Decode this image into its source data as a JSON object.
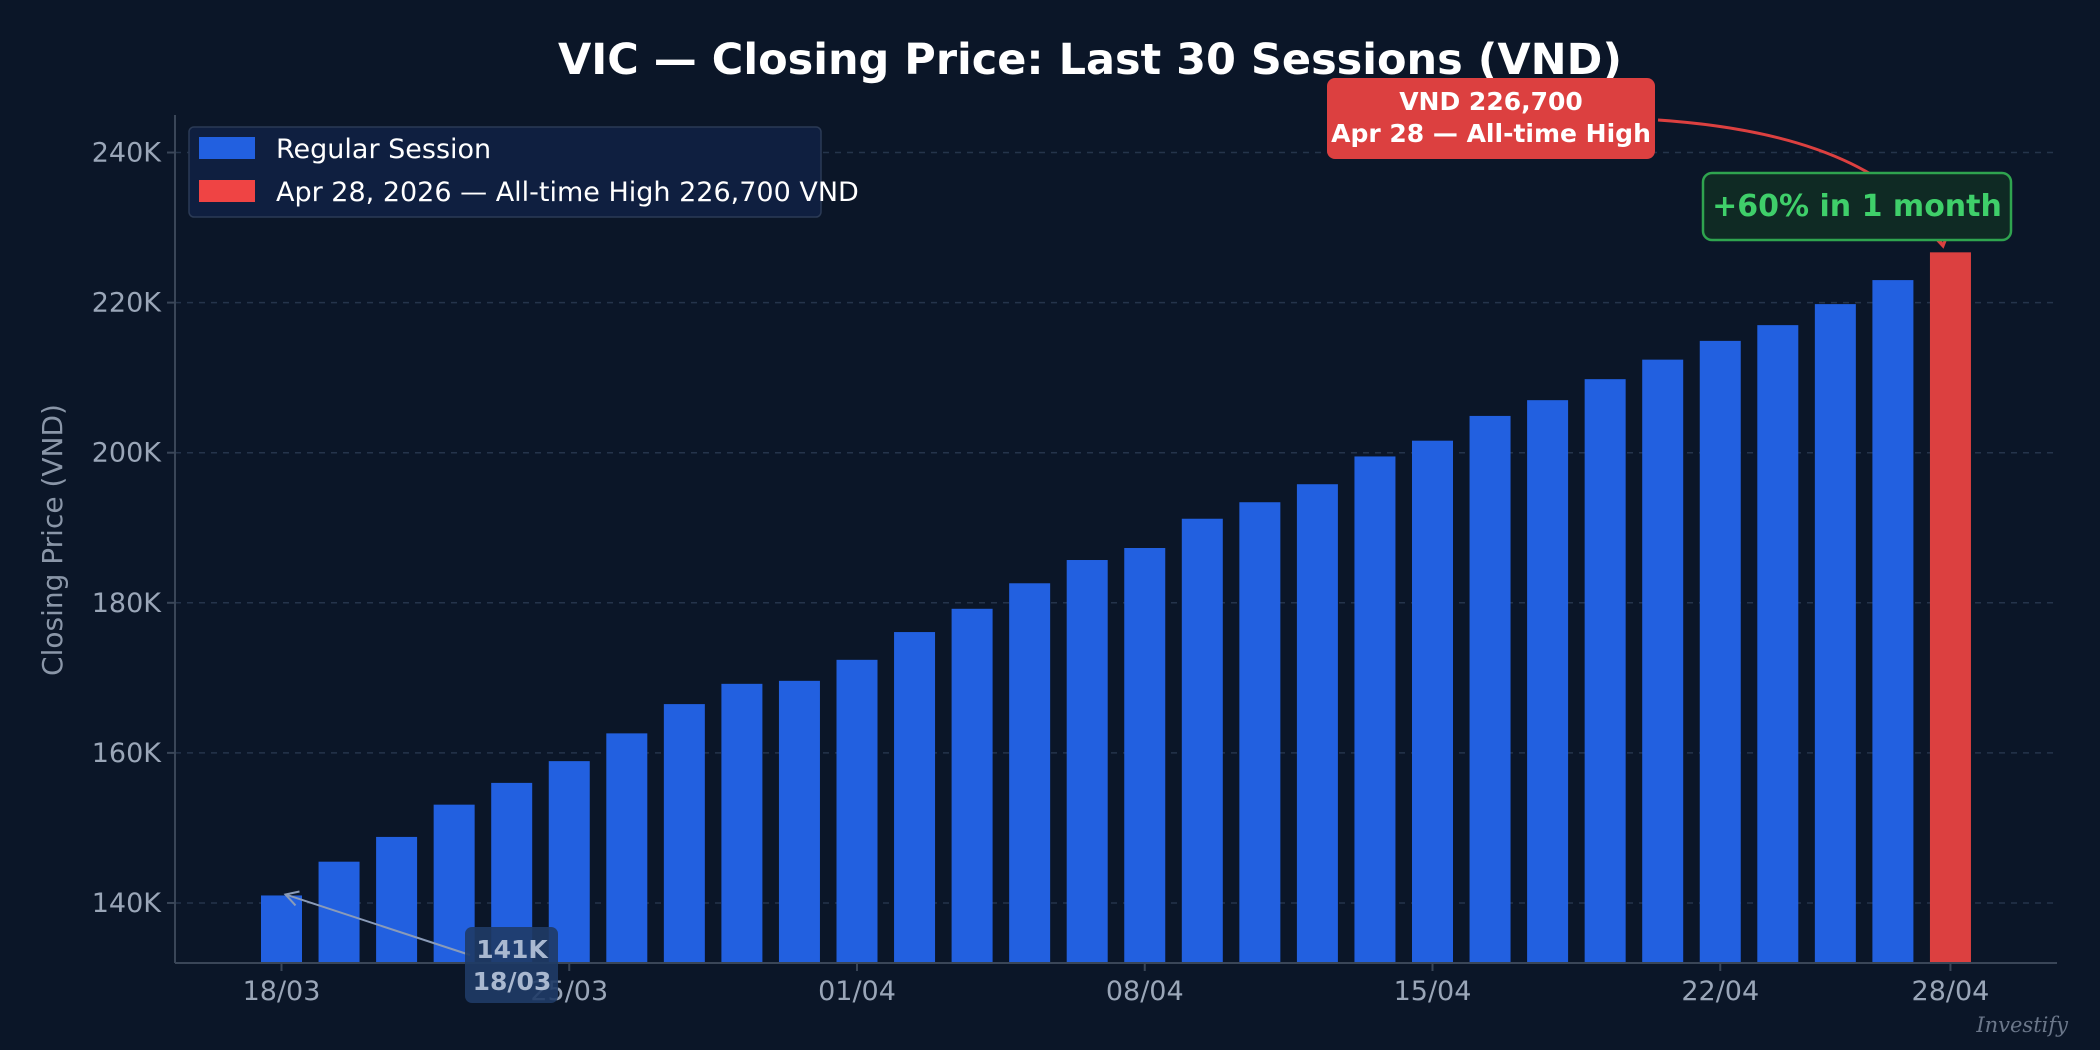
{
  "colors": {
    "background": "#0b1628",
    "regular": "#2260e0",
    "highlight": "#dc4040",
    "green": "#3fcf6a",
    "grid": "#25344b",
    "axis": "#3a4658"
  },
  "chart_data": {
    "type": "bar",
    "title": "VIC — Closing Price: Last 30 Sessions (VND)",
    "ylabel": "Closing Price (VND)",
    "xlabel": "",
    "ylim": [
      132000,
      245000
    ],
    "yticks": [
      140000,
      160000,
      180000,
      200000,
      220000,
      240000
    ],
    "ytick_labels": [
      "140K",
      "160K",
      "180K",
      "200K",
      "220K",
      "240K"
    ],
    "xtick_labels": [
      {
        "index": 0,
        "label": "18/03"
      },
      {
        "index": 5,
        "label": "25/03"
      },
      {
        "index": 10,
        "label": "01/04"
      },
      {
        "index": 15,
        "label": "08/04"
      },
      {
        "index": 20,
        "label": "15/04"
      },
      {
        "index": 25,
        "label": "22/04"
      },
      {
        "index": 29,
        "label": "28/04"
      }
    ],
    "grid": true,
    "legend_position": "top-left",
    "series": [
      {
        "name": "Regular Session",
        "values": [
          141000,
          145500,
          148800,
          153100,
          156000,
          158900,
          162600,
          166500,
          169200,
          169600,
          172400,
          176100,
          179200,
          182600,
          185700,
          187300,
          191200,
          193400,
          195800,
          199500,
          201600,
          204900,
          207000,
          209800,
          212400,
          214900,
          217000,
          219800,
          223000,
          null
        ]
      },
      {
        "name": "Apr 28, 2026 — All-time High 226,700 VND",
        "values": [
          null,
          null,
          null,
          null,
          null,
          null,
          null,
          null,
          null,
          null,
          null,
          null,
          null,
          null,
          null,
          null,
          null,
          null,
          null,
          null,
          null,
          null,
          null,
          null,
          null,
          null,
          null,
          null,
          null,
          226700
        ]
      }
    ],
    "annotations": {
      "start": {
        "index": 0,
        "line1": "141K",
        "line2": "18/03"
      },
      "peak": {
        "index": 29,
        "line1": "VND 226,700",
        "line2": "Apr 28 — All-time High"
      },
      "growth": {
        "text": "+60% in 1 month"
      }
    },
    "watermark": "Investify"
  }
}
